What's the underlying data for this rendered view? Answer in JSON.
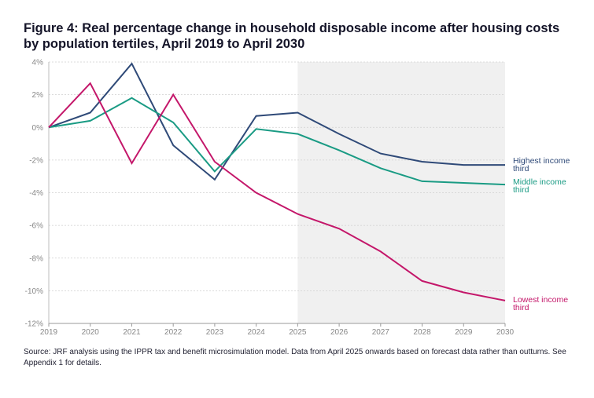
{
  "figure": {
    "title": "Figure 4: Real percentage change in household disposable income after housing costs by population tertiles, April 2019 to April 2030",
    "source": "Source: JRF analysis using the IPPR tax and benefit microsimulation model. Data from April 2025 onwards based on forecast data rather than outturns. See Appendix 1 for details."
  },
  "chart_data": {
    "type": "line",
    "title": "Figure 4: Real percentage change in household disposable income after housing costs by population tertiles, April 2019 to April 2030",
    "xlabel": "",
    "ylabel": "",
    "x": [
      2019,
      2020,
      2021,
      2022,
      2023,
      2024,
      2025,
      2026,
      2027,
      2028,
      2029,
      2030
    ],
    "x_tick_labels": [
      "2019",
      "2020",
      "2021",
      "2022",
      "2023",
      "2024",
      "2025",
      "2026",
      "2027",
      "2028",
      "2029",
      "2030"
    ],
    "xlim": [
      2019,
      2030
    ],
    "ylim": [
      -12,
      4
    ],
    "y_ticks": [
      4,
      2,
      0,
      -2,
      -4,
      -6,
      -8,
      -10,
      -12
    ],
    "y_tick_labels": [
      "4%",
      "2%",
      "0%",
      "-2%",
      "-4%",
      "-6%",
      "-8%",
      "-10%",
      "-12%"
    ],
    "grid": "horizontal dashed",
    "shaded_region": {
      "from": 2025,
      "to": 2030,
      "meaning": "forecast",
      "color": "#f0f0f0"
    },
    "series": [
      {
        "name": "Highest income third",
        "label_lines": [
          "Highest income",
          "third"
        ],
        "color": "#2f4a78",
        "values": [
          0,
          0.9,
          3.9,
          -1.1,
          -3.2,
          0.7,
          0.9,
          -0.4,
          -1.6,
          -2.1,
          -2.3,
          -2.3
        ]
      },
      {
        "name": "Middle income third",
        "label_lines": [
          "Middle income",
          "third"
        ],
        "color": "#1a9b84",
        "values": [
          0,
          0.4,
          1.8,
          0.3,
          -2.7,
          -0.1,
          -0.4,
          -1.4,
          -2.5,
          -3.3,
          -3.4,
          -3.5
        ]
      },
      {
        "name": "Lowest income third",
        "label_lines": [
          "Lowest income",
          "third"
        ],
        "color": "#c4176a",
        "values": [
          0,
          2.7,
          -2.2,
          2.0,
          -2.1,
          -4.0,
          -5.3,
          -6.2,
          -7.6,
          -9.4,
          -10.1,
          -10.6
        ]
      }
    ]
  }
}
